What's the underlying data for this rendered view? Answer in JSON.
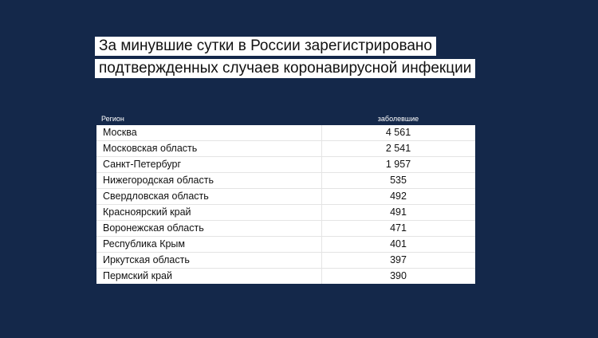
{
  "title": {
    "line1": "За минувшие сутки в России зарегистрировано",
    "line2": "подтвержденных случаев коронавирусной инфекции"
  },
  "colors": {
    "background": "#14284a",
    "table_background": "#ffffff",
    "text": "#111111"
  },
  "chart_data": {
    "type": "table",
    "columns": [
      "Регион",
      "заболевшие"
    ],
    "rows": [
      {
        "region": "Москва",
        "value": "4 561"
      },
      {
        "region": "Московская область",
        "value": "2 541"
      },
      {
        "region": "Санкт-Петербург",
        "value": "1 957"
      },
      {
        "region": "Нижегородская область",
        "value": "535"
      },
      {
        "region": "Свердловская область",
        "value": "492"
      },
      {
        "region": "Красноярский край",
        "value": "491"
      },
      {
        "region": "Воронежская область",
        "value": "471"
      },
      {
        "region": "Республика Крым",
        "value": "401"
      },
      {
        "region": "Иркутская область",
        "value": "397"
      },
      {
        "region": "Пермский край",
        "value": "390"
      }
    ]
  }
}
